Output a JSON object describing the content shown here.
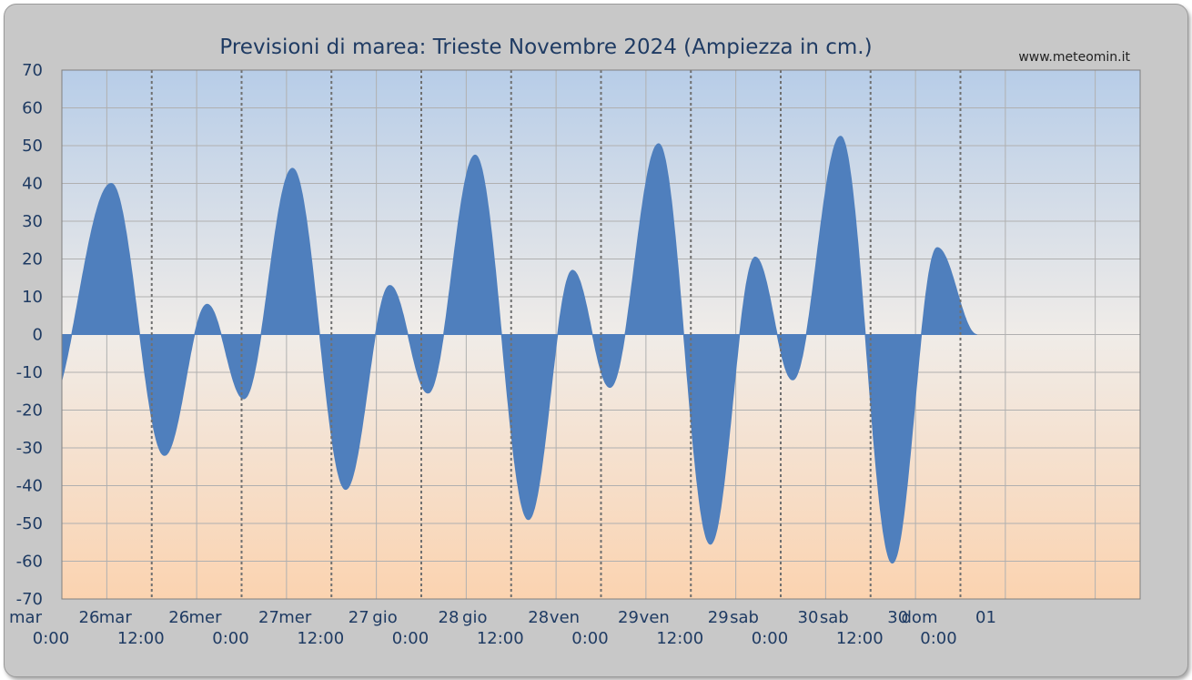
{
  "chart_data": {
    "type": "area",
    "title": "Previsioni di marea: Trieste Novembre 2024 (Ampiezza in cm.)",
    "credit": "www.meteomin.it",
    "xlabel": "",
    "ylabel": "",
    "ylim": [
      -70,
      70
    ],
    "ytick_step": 10,
    "xlim_hours": [
      0,
      144
    ],
    "grid": true,
    "colors": {
      "fill": "#4f7fbd",
      "frame": "#c8c8c8",
      "grid_major": "#707070",
      "grid_minor": "#b0b0b0",
      "bg_top": "#b7cde8",
      "bg_mid": "#f0ece8",
      "bg_bottom": "#fbd3b0",
      "text": "#1f3b63"
    },
    "x_ticks": [
      {
        "hour": 0,
        "day": "mar",
        "date": "26",
        "time": "0:00"
      },
      {
        "hour": 12,
        "day": "mar",
        "date": "26",
        "time": "12:00"
      },
      {
        "hour": 24,
        "day": "mer",
        "date": "27",
        "time": "0:00"
      },
      {
        "hour": 36,
        "day": "mer",
        "date": "27",
        "time": "12:00"
      },
      {
        "hour": 48,
        "day": "gio",
        "date": "28",
        "time": "0:00"
      },
      {
        "hour": 60,
        "day": "gio",
        "date": "28",
        "time": "12:00"
      },
      {
        "hour": 72,
        "day": "ven",
        "date": "29",
        "time": "0:00"
      },
      {
        "hour": 84,
        "day": "ven",
        "date": "29",
        "time": "12:00"
      },
      {
        "hour": 96,
        "day": "sab",
        "date": "30",
        "time": "0:00"
      },
      {
        "hour": 108,
        "day": "sab",
        "date": "30",
        "time": "12:00"
      },
      {
        "hour": 120,
        "day": "dom",
        "date": "01",
        "time": "0:00"
      }
    ],
    "extremes": [
      {
        "hour": -2.2,
        "value": -21
      },
      {
        "hour": 6.6,
        "value": 40
      },
      {
        "hour": 13.7,
        "value": -32
      },
      {
        "hour": 19.4,
        "value": 8
      },
      {
        "hour": 24.3,
        "value": -17
      },
      {
        "hour": 30.8,
        "value": 44
      },
      {
        "hour": 37.9,
        "value": -41
      },
      {
        "hour": 43.8,
        "value": 13
      },
      {
        "hour": 48.9,
        "value": -15.5
      },
      {
        "hour": 55.2,
        "value": 47.5
      },
      {
        "hour": 62.3,
        "value": -49
      },
      {
        "hour": 68.2,
        "value": 17
      },
      {
        "hour": 73.2,
        "value": -14
      },
      {
        "hour": 79.7,
        "value": 50.5
      },
      {
        "hour": 86.6,
        "value": -55.5
      },
      {
        "hour": 92.6,
        "value": 20.5
      },
      {
        "hour": 97.6,
        "value": -12
      },
      {
        "hour": 104.0,
        "value": 52.5
      },
      {
        "hour": 110.9,
        "value": -60.5
      },
      {
        "hour": 116.9,
        "value": 23
      },
      {
        "hour": 122.2,
        "value": 0
      }
    ]
  }
}
